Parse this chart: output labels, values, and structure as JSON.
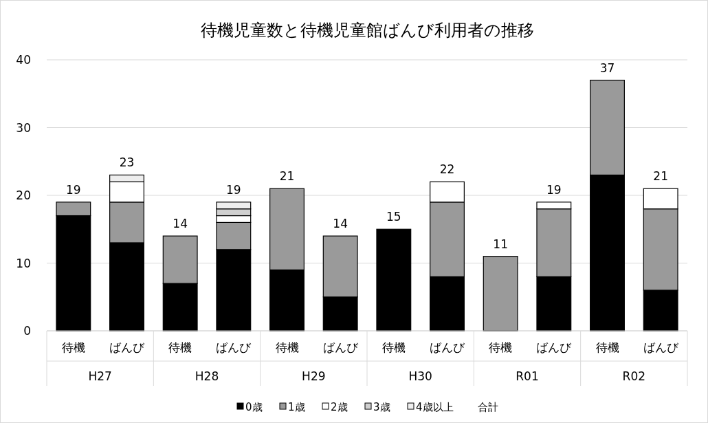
{
  "chart_data": {
    "type": "bar",
    "title": "待機児童数と待機児童館ばんび利用者の推移",
    "categories": [
      "待機",
      "ばんび",
      "待機",
      "ばんび",
      "待機",
      "ばんび",
      "待機",
      "ばんび",
      "待機",
      "ばんび",
      "待機",
      "ばんび"
    ],
    "annotations": [
      "H27",
      "H28",
      "H29",
      "H30",
      "R01",
      "R02",
      "合計"
    ],
    "stacked": true,
    "series": [
      {
        "name": "0歳",
        "color": "#000000",
        "values": [
          17,
          13,
          7,
          12,
          9,
          5,
          15,
          8,
          0,
          8,
          23,
          6
        ]
      },
      {
        "name": "1歳",
        "color": "#9a9a9a",
        "values": [
          2,
          6,
          7,
          4,
          12,
          9,
          0,
          11,
          11,
          10,
          14,
          12
        ]
      },
      {
        "name": "2歳",
        "color": "#ffffff",
        "values": [
          0,
          3,
          0,
          1,
          0,
          0,
          0,
          3,
          0,
          1,
          0,
          3
        ]
      },
      {
        "name": "3歳",
        "color": "#d0d0d0",
        "values": [
          0,
          0,
          0,
          1,
          0,
          0,
          0,
          0,
          0,
          0,
          0,
          0
        ]
      },
      {
        "name": "4歳以上",
        "color": "#eeeeee",
        "values": [
          0,
          1,
          0,
          1,
          0,
          0,
          0,
          0,
          0,
          0,
          0,
          0
        ]
      }
    ],
    "totals": [
      "19",
      "23",
      "14",
      "19",
      "21",
      "14",
      "15",
      "22",
      "11",
      "19",
      "37",
      "21"
    ],
    "ylim": [
      0,
      40
    ],
    "yticks": [
      0,
      10,
      20,
      30,
      40
    ],
    "grid": "y",
    "legend": "bottom"
  }
}
